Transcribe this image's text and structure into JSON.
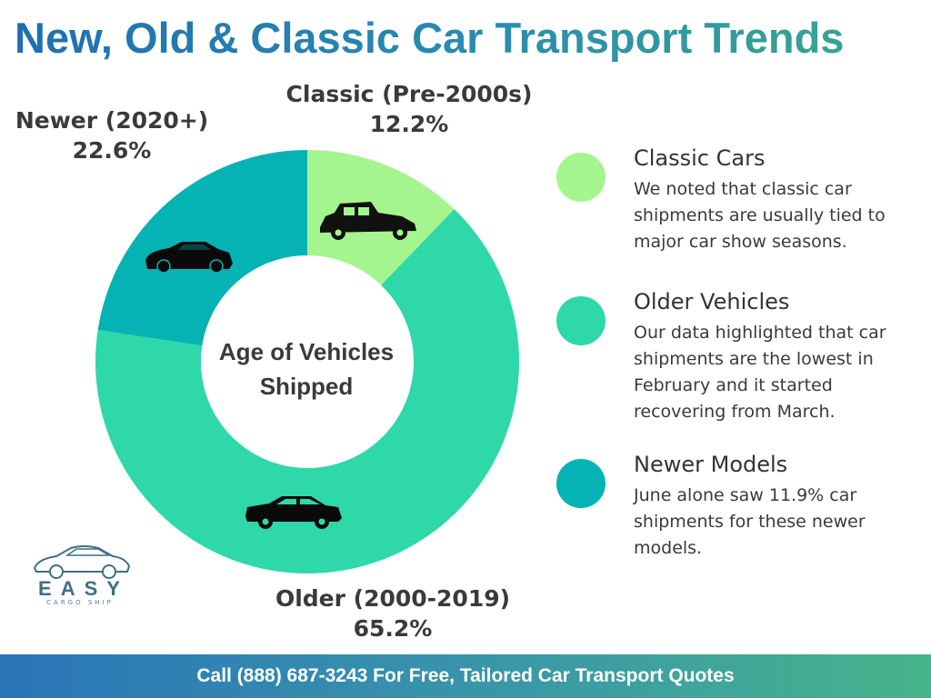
{
  "title": "New, Old & Classic Car Transport Trends",
  "chart_data": {
    "type": "pie",
    "center_text": "Age of Vehicles Shipped",
    "slices": [
      {
        "label": "Classic (Pre-2000s)",
        "value": 12.2,
        "value_label": "12.2%",
        "color": "#a4f58e",
        "icon": "classic-car-icon"
      },
      {
        "label": "Older (2000-2019)",
        "value": 65.2,
        "value_label": "65.2%",
        "color": "#2ed8a8",
        "icon": "sedan-car-icon"
      },
      {
        "label": "Newer (2020+)",
        "value": 22.6,
        "value_label": "22.6%",
        "color": "#05b3b4",
        "icon": "sports-car-icon"
      }
    ]
  },
  "legend": [
    {
      "title": "Classic Cars",
      "description": "We noted that classic car shipments are usually tied to major car show seasons.",
      "color": "#a4f58e"
    },
    {
      "title": "Older Vehicles",
      "description": "Our data highlighted that car shipments are the lowest in February and it started recovering from March.",
      "color": "#2ed8a8"
    },
    {
      "title": "Newer Models",
      "description": "June alone saw 11.9% car shipments for these newer models.",
      "color": "#05b3b4"
    }
  ],
  "logo": {
    "word": "EASY",
    "sub": "CARGO SHIP"
  },
  "footer": "Call (888) 687-3243 For Free, Tailored Car Transport Quotes"
}
